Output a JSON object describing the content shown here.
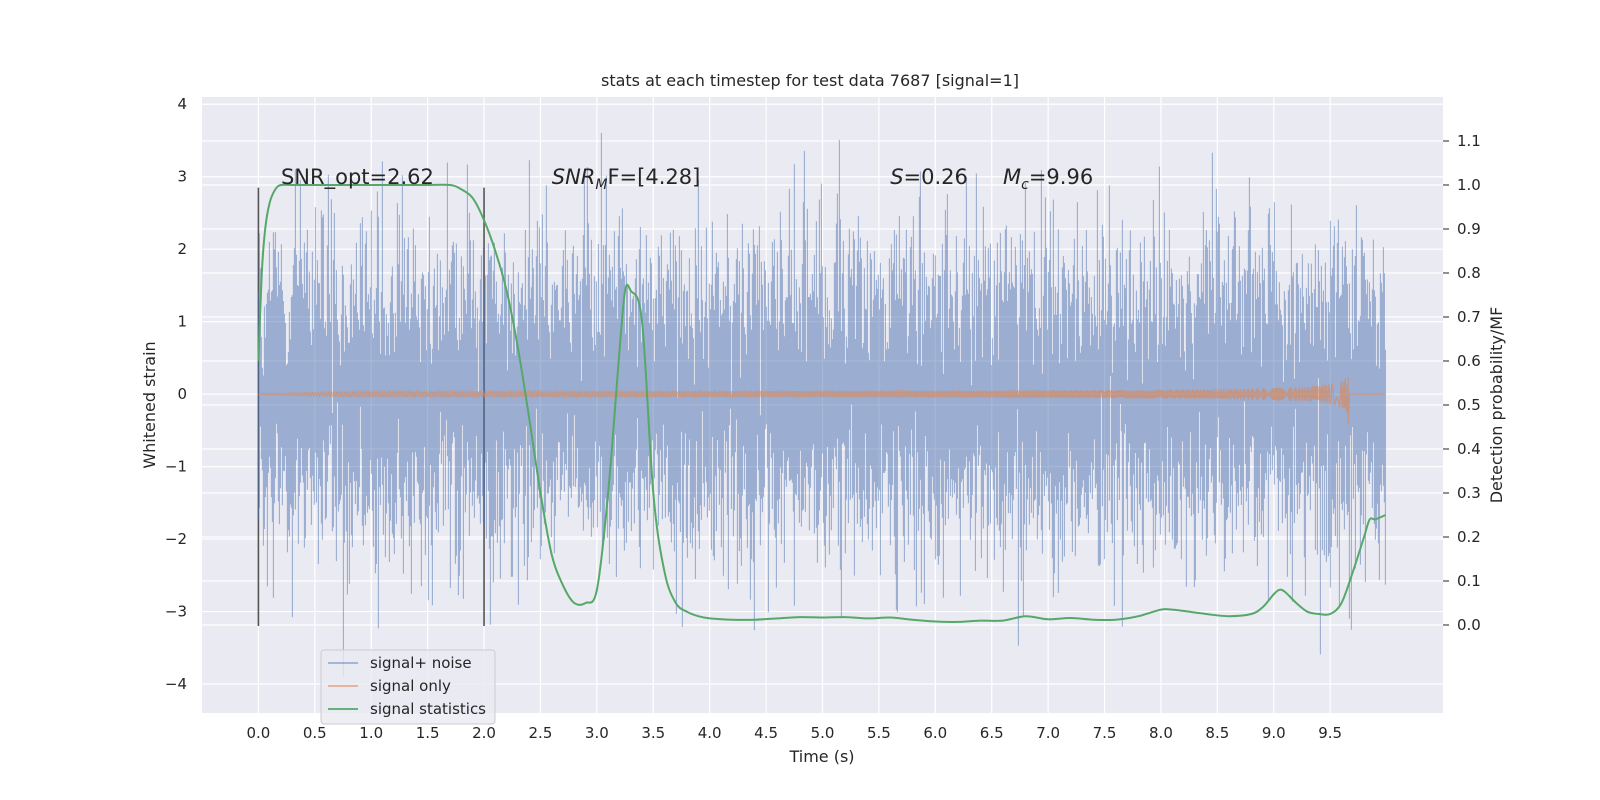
{
  "chart_data": {
    "type": "line",
    "title": "stats at each timestep for test data 7687 [signal=1]",
    "xlabel": "Time (s)",
    "ylabel": "Whitened strain",
    "ylabel_right": "Detection probability/MF",
    "xlim": [
      -0.5,
      10.5
    ],
    "ylim": [
      -4.4,
      4.1
    ],
    "ylim_right": [
      -0.2,
      1.2
    ],
    "x_ticks": [
      0.0,
      0.5,
      1.0,
      1.5,
      2.0,
      2.5,
      3.0,
      3.5,
      4.0,
      4.5,
      5.0,
      5.5,
      6.0,
      6.5,
      7.0,
      7.5,
      8.0,
      8.5,
      9.0,
      9.5
    ],
    "x_tick_labels": [
      "0.0",
      "0.5",
      "1.0",
      "1.5",
      "2.0",
      "2.5",
      "3.0",
      "3.5",
      "4.0",
      "4.5",
      "5.0",
      "5.5",
      "6.0",
      "6.5",
      "7.0",
      "7.5",
      "8.0",
      "8.5",
      "9.0",
      "9.5"
    ],
    "y_ticks": [
      -4,
      -3,
      -2,
      -1,
      0,
      1,
      2,
      3,
      4
    ],
    "y_tick_labels": [
      "−4",
      "−3",
      "−2",
      "−1",
      "0",
      "1",
      "2",
      "3",
      "4"
    ],
    "y_right_ticks": [
      0.0,
      0.1,
      0.2,
      0.3,
      0.4,
      0.5,
      0.6,
      0.7,
      0.8,
      0.9,
      1.0,
      1.1
    ],
    "y_right_tick_labels": [
      "0.0",
      "0.1",
      "0.2",
      "0.3",
      "0.4",
      "0.5",
      "0.6",
      "0.7",
      "0.8",
      "0.9",
      "1.0",
      "1.1"
    ],
    "grid": true,
    "legend_position": "bottom-left",
    "series": [
      {
        "name": "signal+ noise",
        "color": "#4c72b0",
        "opacity": 0.5,
        "axis": "left",
        "kind": "noise",
        "t_start": 0.0,
        "t_end": 9.99,
        "amplitude_sigma": 1.0,
        "range": [
          -3.9,
          3.7
        ]
      },
      {
        "name": "signal only",
        "color": "#dd8452",
        "opacity": 0.6,
        "axis": "left",
        "kind": "chirp",
        "t_start": 0.0,
        "t_merge": 9.66,
        "peak_amplitude": 0.3,
        "min_amplitude": -0.42
      },
      {
        "name": "signal statistics",
        "color": "#55a868",
        "axis": "right",
        "x": [
          0.0,
          0.03,
          0.06,
          0.1,
          0.15,
          0.2,
          0.3,
          0.5,
          1.0,
          1.5,
          1.7,
          1.8,
          1.9,
          2.0,
          2.1,
          2.2,
          2.3,
          2.4,
          2.5,
          2.6,
          2.7,
          2.8,
          2.9,
          3.0,
          3.1,
          3.2,
          3.25,
          3.3,
          3.4,
          3.5,
          3.6,
          3.7,
          3.8,
          3.9,
          4.0,
          4.2,
          4.4,
          4.6,
          4.8,
          5.0,
          5.2,
          5.4,
          5.6,
          5.8,
          6.0,
          6.2,
          6.4,
          6.6,
          6.8,
          7.0,
          7.2,
          7.4,
          7.6,
          7.8,
          8.0,
          8.1,
          8.2,
          8.4,
          8.6,
          8.8,
          8.9,
          9.0,
          9.05,
          9.1,
          9.2,
          9.3,
          9.4,
          9.5,
          9.6,
          9.7,
          9.8,
          9.85,
          9.9,
          9.99
        ],
        "y": [
          0.6,
          0.8,
          0.9,
          0.96,
          0.99,
          1.0,
          1.0,
          1.0,
          1.0,
          1.0,
          1.0,
          0.99,
          0.97,
          0.92,
          0.85,
          0.76,
          0.63,
          0.47,
          0.3,
          0.16,
          0.09,
          0.05,
          0.05,
          0.08,
          0.3,
          0.62,
          0.76,
          0.76,
          0.69,
          0.3,
          0.12,
          0.05,
          0.03,
          0.02,
          0.015,
          0.012,
          0.012,
          0.015,
          0.018,
          0.017,
          0.018,
          0.015,
          0.017,
          0.012,
          0.008,
          0.007,
          0.01,
          0.01,
          0.02,
          0.013,
          0.016,
          0.012,
          0.012,
          0.02,
          0.035,
          0.035,
          0.032,
          0.025,
          0.02,
          0.025,
          0.04,
          0.07,
          0.08,
          0.075,
          0.05,
          0.03,
          0.025,
          0.025,
          0.05,
          0.12,
          0.2,
          0.24,
          0.24,
          0.25
        ]
      }
    ],
    "vertical_lines": [
      {
        "x": 0.0,
        "ymin": -3.2,
        "ymax": 2.85,
        "color": "#555555"
      },
      {
        "x": 2.0,
        "ymin": -3.2,
        "ymax": 2.85,
        "color": "#555555"
      }
    ],
    "annotations": [
      {
        "text": "SNR_opt=2.62",
        "x": 0.2,
        "y": 2.9
      },
      {
        "base": "SNR",
        "sub": "M",
        "suffix": "F=[4.28]",
        "x": 2.6,
        "y": 2.9,
        "italic_base": true
      },
      {
        "base": "S",
        "suffix": "=0.26",
        "x": 5.6,
        "y": 2.9,
        "italic_base": true
      },
      {
        "base": "M",
        "sub": "c",
        "suffix": "=9.96",
        "x": 6.6,
        "y": 2.9,
        "italic_base": true
      }
    ]
  }
}
